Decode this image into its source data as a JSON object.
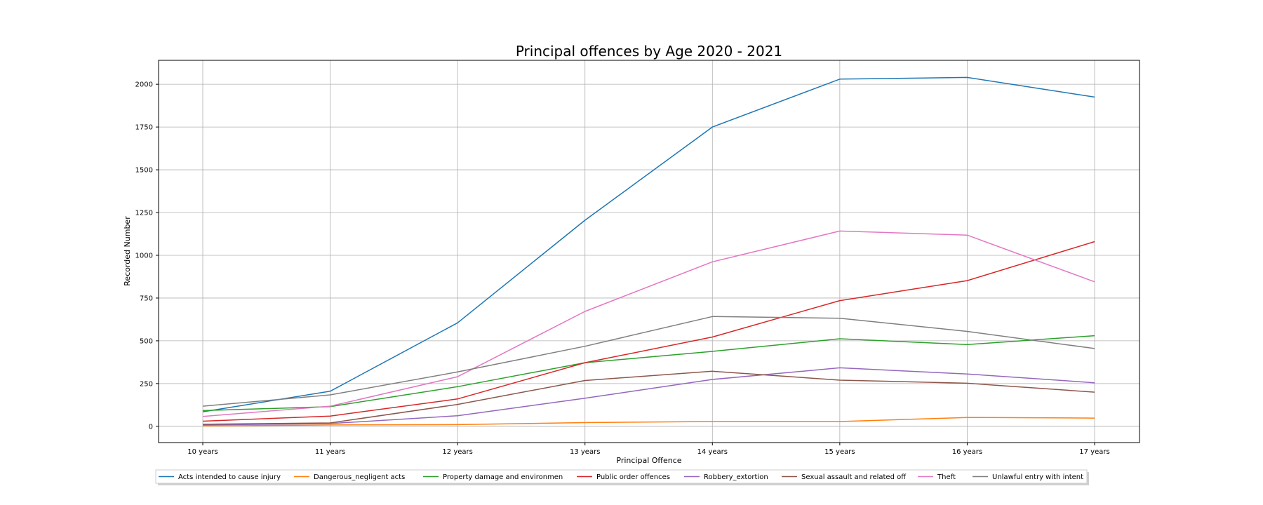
{
  "chart_data": {
    "type": "line",
    "title": "Principal offences by Age 2020 - 2021",
    "xlabel": "Principal Offence",
    "ylabel": "Recorded Number",
    "categories": [
      "10 years",
      "11 years",
      "12 years",
      "13 years",
      "14 years",
      "15 years",
      "16 years",
      "17 years"
    ],
    "ylim": [
      -95,
      2140
    ],
    "yticks": [
      0,
      250,
      500,
      750,
      1000,
      1250,
      1500,
      1750,
      2000
    ],
    "grid": true,
    "legend_position": "bottom",
    "series": [
      {
        "name": "Acts intended to cause injury",
        "color": "#1f77b4",
        "values": [
          85,
          205,
          605,
          1205,
          1750,
          2030,
          2040,
          1925
        ]
      },
      {
        "name": "Dangerous_negligent acts",
        "color": "#ff7f0e",
        "values": [
          2,
          8,
          10,
          22,
          28,
          28,
          52,
          48
        ]
      },
      {
        "name": "Property damage and environmen",
        "color": "#2ca02c",
        "values": [
          92,
          115,
          232,
          372,
          438,
          512,
          478,
          530
        ]
      },
      {
        "name": "Public order offences",
        "color": "#d62728",
        "values": [
          30,
          60,
          160,
          372,
          522,
          735,
          852,
          1080
        ]
      },
      {
        "name": "Robbery_extortion",
        "color": "#9467bd",
        "values": [
          8,
          16,
          62,
          164,
          274,
          342,
          306,
          255
        ]
      },
      {
        "name": "Sexual assault and related off",
        "color": "#8c564b",
        "values": [
          12,
          20,
          128,
          268,
          322,
          270,
          252,
          200
        ]
      },
      {
        "name": "Theft",
        "color": "#e377c2",
        "values": [
          58,
          118,
          290,
          672,
          962,
          1142,
          1118,
          845
        ]
      },
      {
        "name": "Unlawful entry with intent",
        "color": "#7f7f7f",
        "values": [
          118,
          184,
          318,
          468,
          642,
          632,
          555,
          455
        ]
      }
    ]
  }
}
